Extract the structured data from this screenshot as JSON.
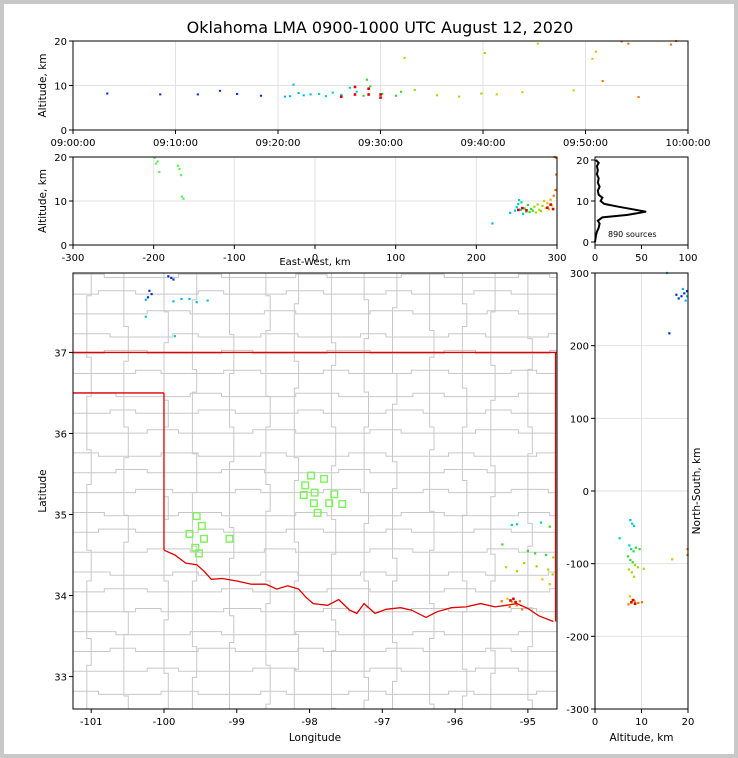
{
  "title": "Oklahoma LMA 0900-1000 UTC August 12, 2020",
  "chart_data": [
    {
      "panel": "time-altitude",
      "type": "scatter",
      "ylabel": "Altitude, km",
      "xlim": [
        "09:00:00",
        "10:00:00"
      ],
      "ylim": [
        0,
        20
      ],
      "x_ticks": [
        "09:00:00",
        "09:10:00",
        "09:20:00",
        "09:30:00",
        "09:40:00",
        "09:50:00",
        "10:00:00"
      ],
      "y_ticks": [
        0,
        10,
        20
      ],
      "grid": true,
      "points": [
        [
          "09:03:20",
          8.2
        ],
        [
          "09:08:30",
          8.0
        ],
        [
          "09:12:10",
          8.0
        ],
        [
          "09:14:20",
          8.8
        ],
        [
          "09:16:00",
          8.1
        ],
        [
          "09:18:20",
          7.7
        ],
        [
          "09:20:40",
          7.5
        ],
        [
          "09:21:10",
          7.6
        ],
        [
          "09:21:30",
          10.2
        ],
        [
          "09:22:00",
          8.3
        ],
        [
          "09:22:30",
          7.8
        ],
        [
          "09:23:10",
          8.0
        ],
        [
          "09:24:00",
          8.1
        ],
        [
          "09:24:40",
          7.6
        ],
        [
          "09:25:20",
          8.4
        ],
        [
          "09:26:10",
          7.9
        ],
        [
          "09:27:00",
          9.5
        ],
        [
          "09:27:40",
          8.6
        ],
        [
          "09:28:20",
          7.7
        ],
        [
          "09:28:40",
          11.3
        ],
        [
          "09:29:00",
          9.8
        ],
        [
          "09:30:10",
          8.1
        ],
        [
          "09:31:30",
          7.7
        ],
        [
          "09:32:00",
          8.6
        ],
        [
          "09:32:20",
          16.2
        ],
        [
          "09:33:20",
          9.0
        ],
        [
          "09:35:30",
          7.8
        ],
        [
          "09:37:40",
          7.5
        ],
        [
          "09:39:50",
          8.2
        ],
        [
          "09:40:10",
          17.3
        ],
        [
          "09:41:20",
          8.0
        ],
        [
          "09:43:50",
          8.5
        ],
        [
          "09:45:20",
          19.4
        ],
        [
          "09:48:50",
          8.9
        ],
        [
          "09:50:40",
          16.0
        ],
        [
          "09:51:00",
          17.6
        ],
        [
          "09:51:40",
          11.0
        ],
        [
          "09:53:30",
          19.9
        ],
        [
          "09:54:10",
          19.4
        ],
        [
          "09:55:10",
          7.4
        ],
        [
          "09:58:20",
          19.2
        ],
        [
          "09:58:50",
          20.0
        ]
      ],
      "red_points": [
        [
          "09:26:10",
          7.5
        ],
        [
          "09:27:30",
          8.0
        ],
        [
          "09:27:30",
          9.7
        ],
        [
          "09:28:50",
          8.0
        ],
        [
          "09:28:50",
          9.3
        ],
        [
          "09:30:00",
          8.0
        ],
        [
          "09:30:00",
          7.3
        ]
      ]
    },
    {
      "panel": "east-west-altitude",
      "type": "scatter",
      "xlabel": "East-West, km",
      "ylabel": "Altitude, km",
      "xlim": [
        -300,
        300
      ],
      "ylim": [
        0,
        20
      ],
      "x_ticks": [
        -300,
        -200,
        -100,
        0,
        100,
        200,
        300
      ],
      "y_ticks": [
        0,
        10,
        20
      ],
      "grid": true,
      "points": [
        [
          -199,
          19.8
        ],
        [
          -197,
          18.5
        ],
        [
          -195,
          19.0
        ],
        [
          -193,
          16.6
        ],
        [
          -170,
          18.0
        ],
        [
          -168,
          17.3
        ],
        [
          -166,
          15.9
        ],
        [
          -165,
          11.0
        ],
        [
          -163,
          10.5
        ],
        [
          220,
          4.9
        ],
        [
          242,
          7.3
        ],
        [
          248,
          7.8
        ],
        [
          250,
          8.6
        ],
        [
          252,
          9.3
        ],
        [
          253,
          10.2
        ],
        [
          255,
          8.0
        ],
        [
          256,
          9.7
        ],
        [
          258,
          7.1
        ],
        [
          260,
          8.3
        ],
        [
          262,
          7.6
        ],
        [
          264,
          9.1
        ],
        [
          266,
          7.5
        ],
        [
          268,
          8.2
        ],
        [
          270,
          7.8
        ],
        [
          272,
          8.7
        ],
        [
          274,
          7.4
        ],
        [
          276,
          9.2
        ],
        [
          278,
          8.0
        ],
        [
          280,
          7.7
        ],
        [
          282,
          8.9
        ],
        [
          284,
          10.0
        ],
        [
          286,
          8.4
        ],
        [
          288,
          9.5
        ],
        [
          290,
          8.1
        ],
        [
          292,
          10.3
        ],
        [
          294,
          9.0
        ],
        [
          296,
          11.2
        ],
        [
          298,
          12.5
        ],
        [
          299,
          16.0
        ],
        [
          299,
          19.8
        ],
        [
          297,
          20.0
        ]
      ],
      "red_points": [
        [
          252,
          8.0
        ],
        [
          257,
          8.4
        ],
        [
          262,
          7.9
        ],
        [
          288,
          8.5
        ],
        [
          292,
          9.2
        ],
        [
          295,
          8.2
        ]
      ]
    },
    {
      "panel": "altitude-histogram",
      "type": "line",
      "xlim": [
        0,
        100
      ],
      "ylim": [
        0,
        20
      ],
      "x_ticks": [
        0,
        50,
        100
      ],
      "y_ticks": [
        0,
        10,
        20
      ],
      "annotation": "890 sources",
      "profile": [
        [
          0,
          0
        ],
        [
          1,
          1.5
        ],
        [
          2,
          2.5
        ],
        [
          4,
          3.5
        ],
        [
          5,
          4.5
        ],
        [
          3,
          5.2
        ],
        [
          8,
          6.0
        ],
        [
          35,
          6.6
        ],
        [
          55,
          7.4
        ],
        [
          40,
          8.0
        ],
        [
          25,
          8.6
        ],
        [
          10,
          9.3
        ],
        [
          6,
          10.0
        ],
        [
          8,
          10.8
        ],
        [
          4,
          11.5
        ],
        [
          3,
          12.5
        ],
        [
          5,
          13.5
        ],
        [
          3,
          14.5
        ],
        [
          4,
          15.5
        ],
        [
          2,
          16.5
        ],
        [
          3,
          17.5
        ],
        [
          2,
          18.5
        ],
        [
          4,
          19.3
        ],
        [
          1,
          20
        ]
      ]
    },
    {
      "panel": "plan-view",
      "type": "scatter",
      "xlabel": "Longitude",
      "ylabel": "Latitude",
      "xlim": [
        -101.25,
        -94.6
      ],
      "ylim": [
        32.6,
        37.98
      ],
      "x_ticks": [
        -101,
        -100,
        -99,
        -98,
        -97,
        -96,
        -95
      ],
      "y_ticks": [
        33,
        34,
        35,
        36,
        37
      ],
      "stations": [
        [
          -99.55,
          34.98
        ],
        [
          -99.48,
          34.86
        ],
        [
          -99.65,
          34.76
        ],
        [
          -99.45,
          34.7
        ],
        [
          -99.57,
          34.59
        ],
        [
          -99.52,
          34.52
        ],
        [
          -99.1,
          34.7
        ],
        [
          -97.98,
          35.48
        ],
        [
          -98.06,
          35.36
        ],
        [
          -97.8,
          35.44
        ],
        [
          -98.08,
          35.24
        ],
        [
          -97.93,
          35.27
        ],
        [
          -97.66,
          35.25
        ],
        [
          -97.94,
          35.14
        ],
        [
          -97.73,
          35.14
        ],
        [
          -97.55,
          35.13
        ],
        [
          -97.89,
          35.02
        ]
      ],
      "points": [
        [
          -99.94,
          37.94
        ],
        [
          -99.9,
          37.92
        ],
        [
          -99.87,
          37.9
        ],
        [
          -100.2,
          37.76
        ],
        [
          -100.17,
          37.72
        ],
        [
          -100.22,
          37.68
        ],
        [
          -100.25,
          37.65
        ],
        [
          -99.87,
          37.63
        ],
        [
          -99.76,
          37.66
        ],
        [
          -99.65,
          37.66
        ],
        [
          -99.55,
          37.62
        ],
        [
          -99.4,
          37.64
        ],
        [
          -100.25,
          37.44
        ],
        [
          -99.85,
          37.2
        ],
        [
          -95.22,
          34.87
        ],
        [
          -95.15,
          34.88
        ],
        [
          -94.82,
          34.9
        ],
        [
          -94.7,
          34.85
        ],
        [
          -95.35,
          34.63
        ],
        [
          -95.0,
          34.55
        ],
        [
          -94.9,
          34.52
        ],
        [
          -94.75,
          34.5
        ],
        [
          -94.65,
          34.47
        ],
        [
          -95.05,
          34.4
        ],
        [
          -94.88,
          34.36
        ],
        [
          -94.72,
          34.32
        ],
        [
          -94.66,
          34.26
        ],
        [
          -95.15,
          34.3
        ],
        [
          -95.3,
          34.35
        ],
        [
          -94.8,
          34.2
        ],
        [
          -94.7,
          34.14
        ],
        [
          -95.28,
          33.96
        ],
        [
          -95.22,
          33.92
        ],
        [
          -95.15,
          33.88
        ],
        [
          -95.08,
          33.83
        ],
        [
          -95.36,
          33.93
        ],
        [
          -95.11,
          33.93
        ],
        [
          -95.25,
          33.86
        ]
      ],
      "red_points": [
        [
          -95.24,
          33.94
        ],
        [
          -95.2,
          33.96
        ],
        [
          -95.17,
          33.92
        ]
      ]
    },
    {
      "panel": "altitude-north-south",
      "type": "scatter",
      "xlabel": "Altitude, km",
      "ylabel": "North-South, km",
      "xlim": [
        0,
        20
      ],
      "ylim": [
        -300,
        300
      ],
      "x_ticks": [
        0,
        10,
        20
      ],
      "y_ticks": [
        -300,
        -200,
        -100,
        0,
        100,
        200,
        300
      ],
      "grid": true,
      "points": [
        [
          16.0,
          217
        ],
        [
          17.5,
          270
        ],
        [
          18.0,
          265
        ],
        [
          18.6,
          268
        ],
        [
          19.2,
          272
        ],
        [
          19.8,
          275
        ],
        [
          18.9,
          278
        ],
        [
          19.5,
          262
        ],
        [
          19.8,
          268
        ],
        [
          15.5,
          300
        ],
        [
          7.6,
          -40
        ],
        [
          8.0,
          -45
        ],
        [
          8.4,
          -48
        ],
        [
          5.3,
          -65
        ],
        [
          7.4,
          -75
        ],
        [
          7.8,
          -80
        ],
        [
          8.3,
          -83
        ],
        [
          8.8,
          -78
        ],
        [
          9.6,
          -80
        ],
        [
          7.1,
          -90
        ],
        [
          7.6,
          -95
        ],
        [
          8.1,
          -98
        ],
        [
          8.6,
          -102
        ],
        [
          7.3,
          -108
        ],
        [
          7.9,
          -112
        ],
        [
          8.4,
          -118
        ],
        [
          9.2,
          -105
        ],
        [
          10.5,
          -107
        ],
        [
          16.6,
          -94
        ],
        [
          7.5,
          -145
        ],
        [
          8.0,
          -150
        ],
        [
          8.6,
          -152
        ],
        [
          9.3,
          -154
        ],
        [
          10.1,
          -153
        ],
        [
          7.2,
          -156
        ],
        [
          19.9,
          -80
        ],
        [
          19.9,
          -88
        ]
      ],
      "red_points": [
        [
          8.2,
          -150
        ],
        [
          7.8,
          -153
        ],
        [
          8.6,
          -155
        ]
      ]
    }
  ]
}
